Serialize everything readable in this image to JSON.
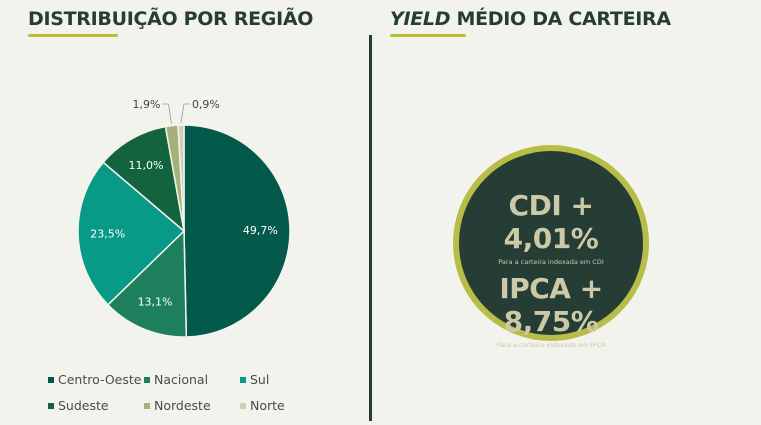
{
  "left": {
    "title": "DISTRIBUIÇÃO POR REGIÃO"
  },
  "right": {
    "title_italic": "YIELD",
    "title_rest": " MÉDIO DA CARTEIRA",
    "cdi": {
      "value": "CDI + 4,01%",
      "caption": "Para a carteira indexada em CDI"
    },
    "ipca": {
      "value": "IPCA + 8,75%",
      "caption": "Para a carteira indexada em IPCA"
    }
  },
  "colors": {
    "accent": "#bcc02f",
    "dark": "#253d34",
    "circle_text": "#cbc9a7"
  },
  "chart_data": {
    "type": "pie",
    "title": "DISTRIBUIÇÃO POR REGIÃO",
    "categories": [
      "Centro-Oeste",
      "Nacional",
      "Sul",
      "Sudeste",
      "Nordeste",
      "Norte"
    ],
    "values": [
      49.7,
      13.1,
      23.5,
      11.0,
      1.9,
      0.9
    ],
    "labels": [
      "49,7%",
      "13,1%",
      "23,5%",
      "11,0%",
      "1,9%",
      "0,9%"
    ],
    "colors": [
      "#035a4a",
      "#1e7f5c",
      "#079a87",
      "#13633f",
      "#a5b07a",
      "#cfd0b8"
    ],
    "legend": "bottom"
  }
}
